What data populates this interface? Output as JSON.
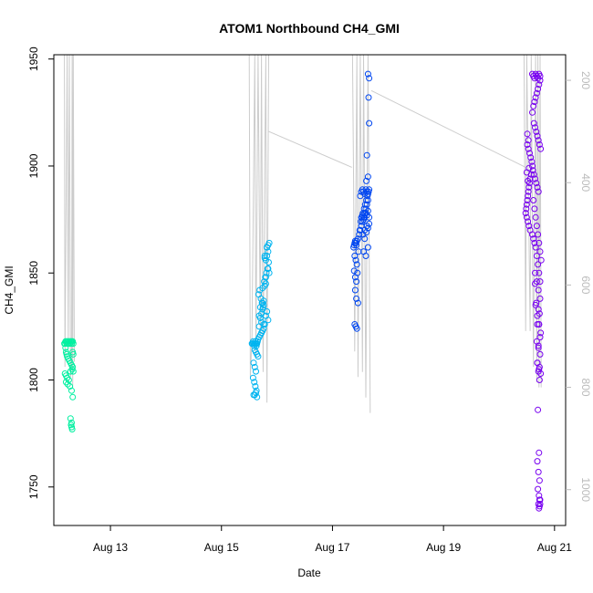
{
  "chart_data": {
    "type": "scatter",
    "title": "ATOM1 Northbound CH4_GMI",
    "xlabel": "Date",
    "ylabel": "CH4_GMI",
    "ylabel_right": "",
    "x_ticks": [
      "Aug 13",
      "Aug 15",
      "Aug 17",
      "Aug 19",
      "Aug 21"
    ],
    "x_tick_values": [
      13,
      15,
      17,
      19,
      21
    ],
    "xlim": [
      11.98,
      21.2
    ],
    "y_ticks": [
      1750,
      1800,
      1850,
      1900,
      1950
    ],
    "ylim": [
      1732,
      1952
    ],
    "y_right_ticks": [
      200,
      400,
      600,
      800,
      1000
    ],
    "y_right_lim": [
      1070,
      150
    ],
    "grid": false,
    "legend": "none",
    "pressure_color": "#cccccc",
    "series": [
      {
        "color": "#00f0a0",
        "x": [
          12.17,
          12.18,
          12.19,
          12.2,
          12.21,
          12.22,
          12.23,
          12.24,
          12.25,
          12.26,
          12.27,
          12.28,
          12.29,
          12.3,
          12.31,
          12.32,
          12.33,
          12.19,
          12.2,
          12.21,
          12.22,
          12.24,
          12.26,
          12.28,
          12.3,
          12.32,
          12.18,
          12.2,
          12.22,
          12.25,
          12.28,
          12.31,
          12.33,
          12.2,
          12.23,
          12.27,
          12.3,
          12.32,
          12.28,
          12.3,
          12.29,
          12.3,
          12.31,
          12.32,
          12.33
        ],
        "y": [
          1817,
          1817,
          1818,
          1818,
          1817,
          1818,
          1818,
          1817,
          1818,
          1818,
          1817,
          1818,
          1818,
          1817,
          1818,
          1818,
          1817,
          1815,
          1813,
          1812,
          1811,
          1810,
          1809,
          1808,
          1807,
          1806,
          1803,
          1802,
          1801,
          1800,
          1804,
          1805,
          1804,
          1799,
          1798,
          1797,
          1795,
          1792,
          1782,
          1780,
          1779,
          1778,
          1777,
          1813,
          1812
        ]
      },
      {
        "color": "#00b4f0",
        "x": [
          15.55,
          15.56,
          15.57,
          15.58,
          15.59,
          15.6,
          15.61,
          15.62,
          15.63,
          15.64,
          15.65,
          15.6,
          15.62,
          15.64,
          15.66,
          15.58,
          15.6,
          15.62,
          15.57,
          15.59,
          15.61,
          15.63,
          15.58,
          15.6,
          15.62,
          15.64,
          15.66,
          15.68,
          15.7,
          15.72,
          15.74,
          15.76,
          15.78,
          15.8,
          15.82,
          15.84,
          15.67,
          15.69,
          15.71,
          15.73,
          15.75,
          15.77,
          15.79,
          15.81,
          15.83,
          15.85,
          15.68,
          15.7,
          15.72,
          15.74,
          15.76,
          15.78,
          15.8,
          15.82,
          15.84,
          15.68,
          15.72,
          15.76,
          15.8,
          15.84,
          15.7,
          15.74,
          15.78,
          15.82,
          15.86,
          15.72,
          15.76,
          15.8,
          15.84,
          15.74,
          15.78,
          15.82,
          15.86
        ],
        "y": [
          1817,
          1817,
          1818,
          1817,
          1816,
          1817,
          1818,
          1817,
          1816,
          1817,
          1818,
          1814,
          1813,
          1812,
          1811,
          1808,
          1806,
          1804,
          1801,
          1799,
          1797,
          1795,
          1793,
          1793,
          1794,
          1792,
          1819,
          1820,
          1821,
          1822,
          1823,
          1824,
          1826,
          1830,
          1832,
          1828,
          1840,
          1842,
          1838,
          1836,
          1834,
          1846,
          1848,
          1850,
          1852,
          1855,
          1830,
          1829,
          1831,
          1833,
          1835,
          1844,
          1856,
          1858,
          1860,
          1825,
          1827,
          1826,
          1848,
          1852,
          1834,
          1836,
          1858,
          1862,
          1864,
          1822,
          1837,
          1845,
          1863,
          1843,
          1857,
          1862,
          1850
        ]
      },
      {
        "color": "#0046f0",
        "x": [
          17.38,
          17.39,
          17.4,
          17.41,
          17.42,
          17.43,
          17.44,
          17.4,
          17.42,
          17.44,
          17.39,
          17.41,
          17.43,
          17.45,
          17.47,
          17.49,
          17.51,
          17.53,
          17.55,
          17.57,
          17.59,
          17.61,
          17.63,
          17.65,
          17.46,
          17.48,
          17.5,
          17.52,
          17.54,
          17.56,
          17.58,
          17.6,
          17.62,
          17.64,
          17.5,
          17.52,
          17.54,
          17.56,
          17.58,
          17.6,
          17.62,
          17.64,
          17.66,
          17.52,
          17.54,
          17.56,
          17.58,
          17.6,
          17.62,
          17.64,
          17.66,
          17.55,
          17.58,
          17.61,
          17.64,
          17.56,
          17.6,
          17.64,
          17.58,
          17.62,
          17.66,
          17.61,
          17.64,
          17.4,
          17.42,
          17.44,
          17.46,
          17.65,
          17.66,
          17.41,
          17.43,
          17.62,
          17.64,
          17.66
        ],
        "y": [
          1862,
          1863,
          1864,
          1865,
          1864,
          1863,
          1865,
          1858,
          1856,
          1854,
          1851,
          1848,
          1846,
          1850,
          1860,
          1870,
          1874,
          1876,
          1878,
          1880,
          1882,
          1884,
          1886,
          1888,
          1866,
          1868,
          1870,
          1872,
          1874,
          1876,
          1878,
          1880,
          1882,
          1884,
          1886,
          1888,
          1889,
          1888,
          1887,
          1889,
          1888,
          1887,
          1889,
          1876,
          1877,
          1875,
          1876,
          1878,
          1877,
          1879,
          1876,
          1868,
          1870,
          1869,
          1871,
          1860,
          1858,
          1862,
          1866,
          1872,
          1873,
          1893,
          1895,
          1826,
          1825,
          1824,
          1836,
          1932,
          1920,
          1842,
          1838,
          1905,
          1943,
          1941
        ]
      },
      {
        "color": "#7800f0",
        "x": [
          20.48,
          20.49,
          20.5,
          20.51,
          20.52,
          20.53,
          20.54,
          20.55,
          20.56,
          20.5,
          20.52,
          20.54,
          20.56,
          20.58,
          20.6,
          20.51,
          20.53,
          20.55,
          20.57,
          20.59,
          20.61,
          20.63,
          20.65,
          20.67,
          20.69,
          20.71,
          20.6,
          20.62,
          20.64,
          20.66,
          20.68,
          20.7,
          20.72,
          20.74,
          20.6,
          20.62,
          20.64,
          20.66,
          20.68,
          20.7,
          20.72,
          20.74,
          20.63,
          20.65,
          20.67,
          20.69,
          20.71,
          20.73,
          20.75,
          20.62,
          20.64,
          20.66,
          20.68,
          20.7,
          20.72,
          20.74,
          20.76,
          20.65,
          20.68,
          20.71,
          20.74,
          20.66,
          20.69,
          20.72,
          20.75,
          20.68,
          20.71,
          20.74,
          20.69,
          20.72,
          20.75,
          20.5,
          20.52,
          20.54,
          20.51,
          20.53,
          20.6,
          20.62,
          20.64,
          20.66,
          20.68,
          20.7,
          20.72,
          20.74,
          20.65,
          20.67,
          20.69,
          20.71,
          20.73,
          20.69,
          20.71,
          20.73,
          20.7,
          20.72,
          20.69,
          20.71,
          20.73,
          20.7,
          20.72,
          20.74,
          20.71,
          20.73,
          20.72,
          20.74,
          20.73,
          20.71,
          20.73,
          20.72,
          20.74
        ],
        "y": [
          1878,
          1880,
          1882,
          1884,
          1886,
          1888,
          1890,
          1892,
          1894,
          1876,
          1874,
          1872,
          1870,
          1896,
          1900,
          1910,
          1908,
          1906,
          1904,
          1902,
          1898,
          1896,
          1894,
          1892,
          1890,
          1888,
          1925,
          1928,
          1930,
          1932,
          1934,
          1936,
          1938,
          1940,
          1943,
          1942,
          1941,
          1943,
          1942,
          1941,
          1943,
          1942,
          1920,
          1918,
          1916,
          1914,
          1912,
          1910,
          1908,
          1884,
          1880,
          1876,
          1872,
          1868,
          1864,
          1860,
          1856,
          1850,
          1846,
          1842,
          1838,
          1835,
          1830,
          1826,
          1822,
          1818,
          1815,
          1812,
          1808,
          1805,
          1803,
          1897,
          1893,
          1899,
          1915,
          1912,
          1868,
          1866,
          1864,
          1862,
          1858,
          1854,
          1850,
          1846,
          1845,
          1836,
          1826,
          1816,
          1806,
          1808,
          1804,
          1800,
          1786,
          1766,
          1762,
          1757,
          1753,
          1749,
          1746,
          1744,
          1742,
          1741,
          1740,
          1742,
          1744,
          1833,
          1831,
          1826,
          1820
        ]
      }
    ],
    "pressure_profiles": [
      {
        "x": [
          12.17,
          12.18,
          12.22,
          12.24,
          12.26,
          12.28,
          12.3,
          12.31,
          12.32,
          12.33,
          12.35
        ],
        "p": [
          150,
          760,
          150,
          720,
          150,
          780,
          760,
          150,
          800,
          150,
          750
        ]
      },
      {
        "x": [
          15.5,
          15.52,
          15.55,
          15.6,
          15.62,
          15.66,
          15.7,
          15.72,
          15.75,
          15.78,
          15.8,
          15.82,
          15.85
        ],
        "p": [
          150,
          780,
          700,
          150,
          740,
          150,
          700,
          150,
          770,
          360,
          150,
          830,
          150
        ]
      },
      {
        "x": [
          17.36,
          17.38,
          17.4,
          17.44,
          17.46,
          17.5,
          17.54,
          17.56,
          17.6,
          17.64,
          17.68
        ],
        "p": [
          150,
          400,
          730,
          150,
          780,
          150,
          770,
          150,
          820,
          150,
          850
        ]
      },
      {
        "x": [
          20.45,
          20.48,
          20.5,
          20.56,
          20.58,
          20.62,
          20.66,
          20.68,
          20.7,
          20.72,
          20.74,
          20.76
        ],
        "p": [
          150,
          690,
          150,
          690,
          150,
          760,
          150,
          790,
          150,
          800,
          150,
          800
        ]
      }
    ],
    "pressure_connectors": [
      {
        "x": [
          15.85,
          17.35
        ],
        "p": [
          300,
          370
        ]
      },
      {
        "x": [
          17.7,
          20.48
        ],
        "p": [
          220,
          370
        ]
      }
    ]
  }
}
